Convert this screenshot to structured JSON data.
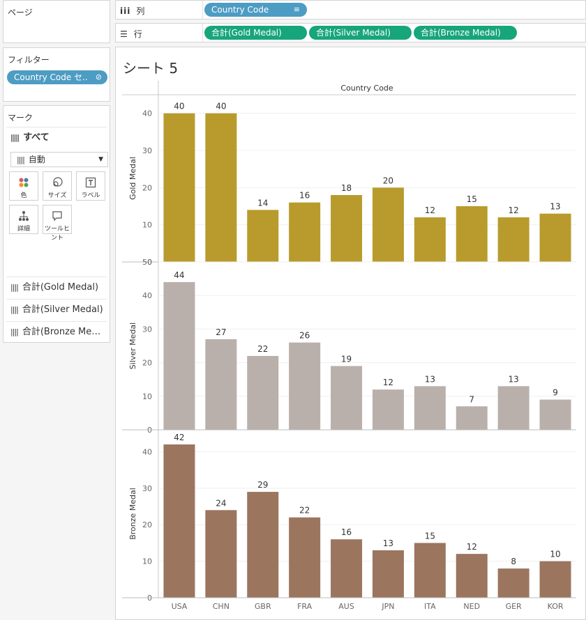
{
  "pages_panel": {
    "title": "ページ"
  },
  "filters_panel": {
    "title": "フィルター",
    "pill": "Country Code セ.."
  },
  "marks_panel": {
    "title": "マーク",
    "all_label": "すべて",
    "mark_type": "自動",
    "buttons": {
      "color": "色",
      "size": "サイズ",
      "label": "ラベル",
      "detail": "詳細",
      "tooltip": "ツールヒント"
    },
    "measures": [
      "合計(Gold Medal)",
      "合計(Silver Medal)",
      "合計(Bronze Me…"
    ]
  },
  "shelves": {
    "columns_label": "列",
    "columns_pill": "Country Code",
    "rows_label": "行",
    "rows_pills": [
      "合計(Gold Medal)",
      "合計(Silver Medal)",
      "合計(Bronze Medal)"
    ]
  },
  "sheet": {
    "title": "シート 5",
    "header": "Country Code"
  },
  "chart_data": {
    "type": "bar",
    "categories": [
      "USA",
      "CHN",
      "GBR",
      "FRA",
      "AUS",
      "JPN",
      "ITA",
      "NED",
      "GER",
      "KOR"
    ],
    "series": [
      {
        "name": "Gold Medal",
        "values": [
          40,
          40,
          14,
          16,
          18,
          20,
          12,
          15,
          12,
          13
        ],
        "color": "#b89b2c",
        "ylim": [
          0,
          45
        ],
        "ticks": [
          0,
          10,
          20,
          30,
          40
        ]
      },
      {
        "name": "Silver Medal",
        "values": [
          44,
          27,
          22,
          26,
          19,
          12,
          13,
          7,
          13,
          9
        ],
        "color": "#bab0ab",
        "ylim": [
          0,
          50
        ],
        "ticks": [
          0,
          10,
          20,
          30,
          40,
          50
        ]
      },
      {
        "name": "Bronze Medal",
        "values": [
          42,
          24,
          29,
          22,
          16,
          13,
          15,
          12,
          8,
          10
        ],
        "color": "#9c755f",
        "ylim": [
          0,
          46
        ],
        "ticks": [
          0,
          10,
          20,
          30,
          40
        ]
      }
    ],
    "xlabel": "Country Code",
    "data_labels": true,
    "grid": true
  }
}
